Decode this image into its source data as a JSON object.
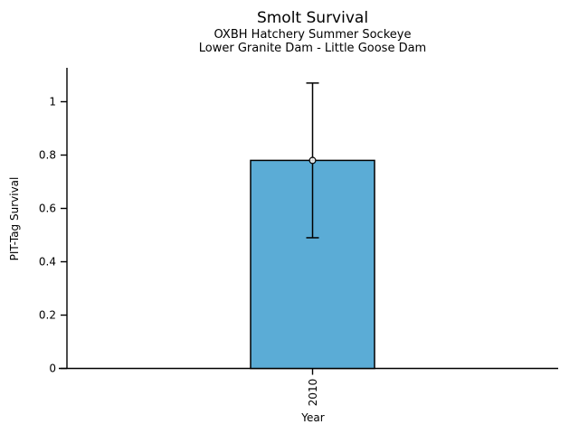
{
  "title": "Smolt Survival",
  "subtitle_line1": "OXBH Hatchery Summer Sockeye",
  "subtitle_line2": "Lower Granite Dam - Little Goose Dam",
  "chart_data": {
    "type": "bar",
    "title": "Smolt Survival",
    "subtitle": [
      "OXBH Hatchery Summer Sockeye",
      "Lower Granite Dam - Little Goose Dam"
    ],
    "xlabel": "Year",
    "ylabel": "PIT-Tag Survival",
    "categories": [
      "2010"
    ],
    "values": [
      0.78
    ],
    "error_bars": [
      {
        "low": 0.49,
        "high": 1.07
      }
    ],
    "marker": "open-circle",
    "ylim": [
      0,
      1.13
    ],
    "ytick_values": [
      0,
      0.2,
      0.4,
      0.6,
      0.8,
      1
    ],
    "yticks": [
      "0",
      "0.2",
      "0.4",
      "0.6",
      "0.8",
      "1"
    ],
    "grid": false,
    "legend": null,
    "bar_color": "#5BACD6",
    "edge_color": "#000000",
    "axis_color": "#000000"
  }
}
